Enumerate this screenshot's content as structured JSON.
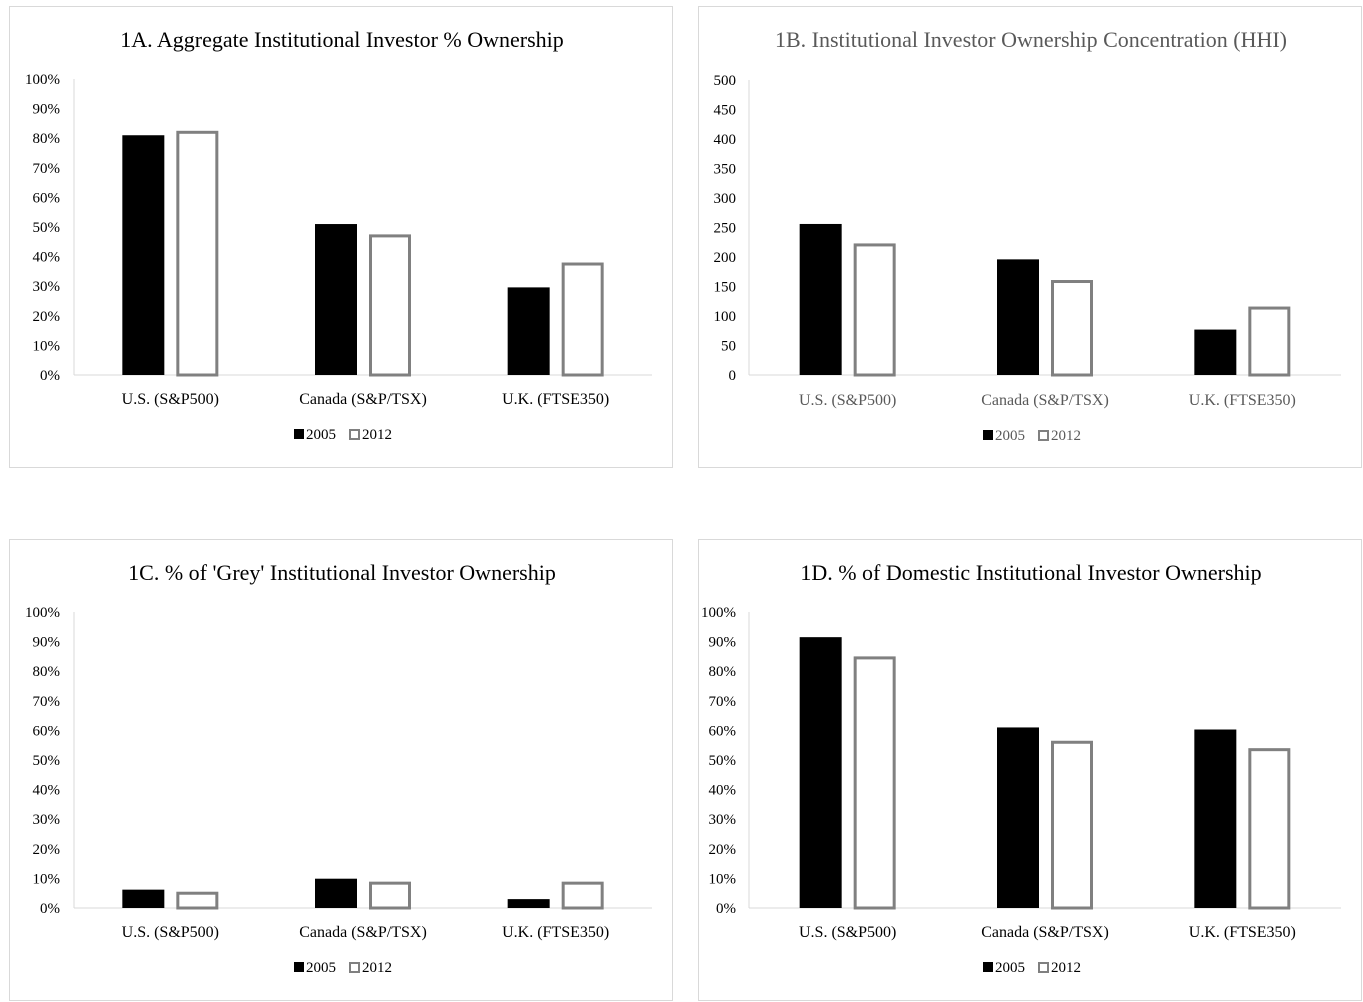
{
  "legend": {
    "series_2005": "2005",
    "series_2012": "2012"
  },
  "colors": {
    "series_2005_fill": "#000000",
    "series_2012_stroke": "#808080",
    "series_2012_fill": "#ffffff",
    "axis": "#d9d9d9"
  },
  "chart_data": [
    {
      "type": "bar",
      "title": "1A. Aggregate Institutional Investor % Ownership",
      "categories": [
        "U.S. (S&P500)",
        "Canada (S&P/TSX)",
        "U.K. (FTSE350)"
      ],
      "series": [
        {
          "name": "2005",
          "values": [
            81,
            51,
            29.6
          ]
        },
        {
          "name": "2012",
          "values": [
            82.5,
            47.5,
            38
          ]
        }
      ],
      "ylim": [
        0,
        100
      ],
      "yticks": [
        "0%",
        "10%",
        "20%",
        "30%",
        "40%",
        "50%",
        "60%",
        "70%",
        "80%",
        "90%",
        "100%"
      ],
      "legend_position": "bottom",
      "grid": false
    },
    {
      "type": "bar",
      "title": "1B. Institutional Investor Ownership Concentration (HHI)",
      "categories": [
        "U.S. (S&P500)",
        "Canada (S&P/TSX)",
        "U.K. (FTSE350)"
      ],
      "series": [
        {
          "name": "2005",
          "values": [
            256,
            196,
            77
          ]
        },
        {
          "name": "2012",
          "values": [
            223,
            161,
            116
          ]
        }
      ],
      "ylim": [
        0,
        500
      ],
      "yticks": [
        "0",
        "50",
        "100",
        "150",
        "200",
        "250",
        "300",
        "350",
        "400",
        "450",
        "500"
      ],
      "legend_position": "bottom",
      "grid": false
    },
    {
      "type": "bar",
      "title": "1C. % of 'Grey' Institutional Investor Ownership",
      "categories": [
        "U.S. (S&P500)",
        "Canada (S&P/TSX)",
        "U.K. (FTSE350)"
      ],
      "series": [
        {
          "name": "2005",
          "values": [
            6.2,
            9.9,
            3
          ]
        },
        {
          "name": "2012",
          "values": [
            5.5,
            8.9,
            8.9
          ]
        }
      ],
      "ylim": [
        0,
        100
      ],
      "yticks": [
        "0%",
        "10%",
        "20%",
        "30%",
        "40%",
        "50%",
        "60%",
        "70%",
        "80%",
        "90%",
        "100%"
      ],
      "legend_position": "bottom",
      "grid": false
    },
    {
      "type": "bar",
      "title": "1D. % of Domestic Institutional Investor Ownership",
      "categories": [
        "U.S. (S&P500)",
        "Canada (S&P/TSX)",
        "U.K. (FTSE350)"
      ],
      "series": [
        {
          "name": "2005",
          "values": [
            91.5,
            61,
            60.3
          ]
        },
        {
          "name": "2012",
          "values": [
            85,
            56.5,
            54
          ]
        }
      ],
      "ylim": [
        0,
        100
      ],
      "yticks": [
        "0%",
        "10%",
        "20%",
        "30%",
        "40%",
        "50%",
        "60%",
        "70%",
        "80%",
        "90%",
        "100%"
      ],
      "legend_position": "bottom",
      "grid": false
    }
  ]
}
